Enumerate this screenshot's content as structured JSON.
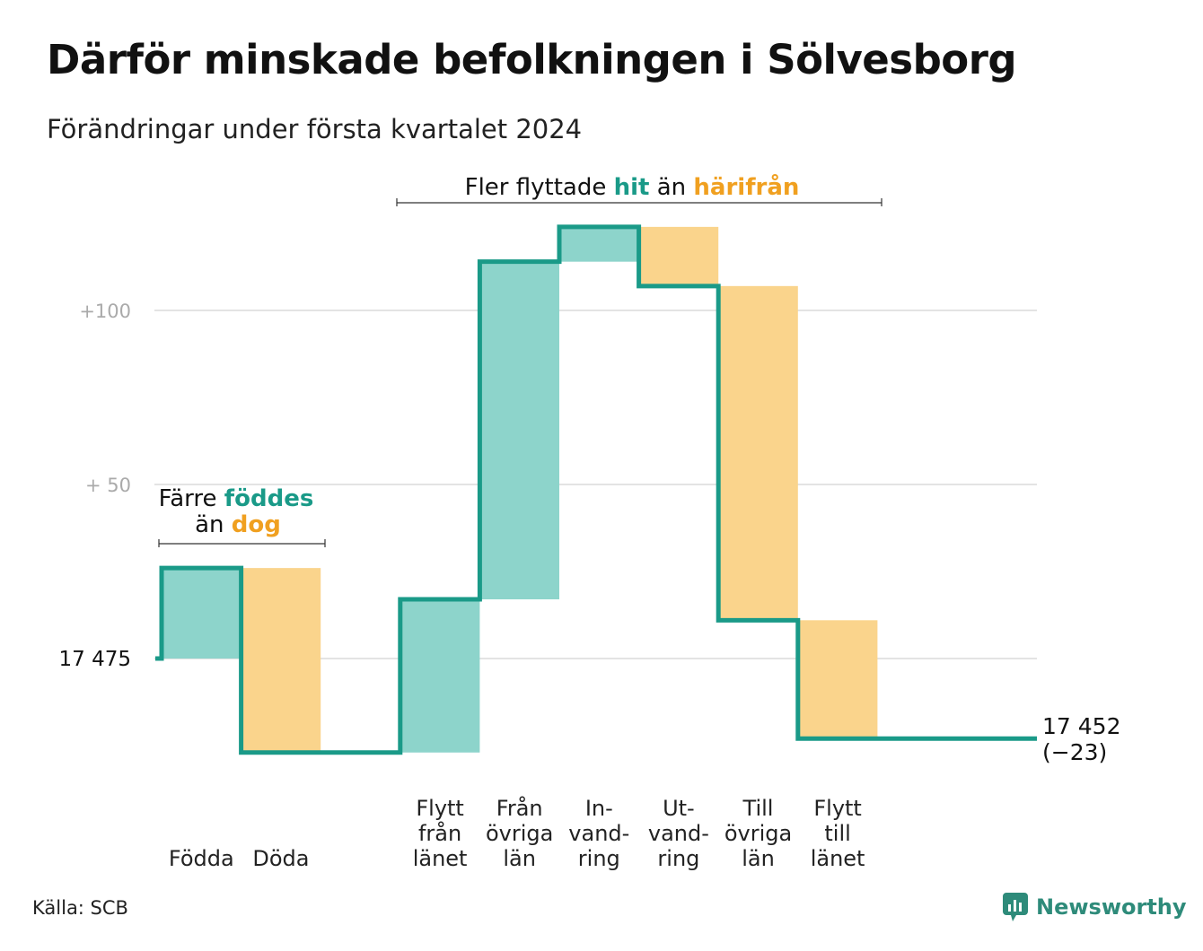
{
  "title": "Därför minskade befolkningen i Sölvesborg",
  "subtitle": "Förändringar under första kvartalet 2024",
  "source": "Källa: SCB",
  "brand": "Newsworthy",
  "colors": {
    "increase_fill": "#8dd4cb",
    "decrease_fill": "#fad48c",
    "line": "#1a9a88",
    "highlight_in": "#1a9a88",
    "highlight_out": "#f0a020",
    "grid": "#e3e3e3"
  },
  "annotations": {
    "births": {
      "line1_a": "Färre ",
      "line1_b": "föddes",
      "line2_a": "än ",
      "line2_b": "dog"
    },
    "migration": {
      "part1": "Fler flyttade ",
      "part2": "hit",
      "part3": " än ",
      "part4": "härifrån"
    }
  },
  "chart_data": {
    "type": "waterfall",
    "start_value": 17475,
    "end_label": "17 452",
    "end_change_label": "(−23)",
    "yticks": [
      {
        "value": 0,
        "label": "17  475"
      },
      {
        "value": 50,
        "label": "+  50"
      },
      {
        "value": 100,
        "label": "+100"
      }
    ],
    "steps": [
      {
        "label": [
          "Födda"
        ],
        "change": 26
      },
      {
        "label": [
          "Döda"
        ],
        "change": -53
      },
      {
        "label": [],
        "change": 0
      },
      {
        "label": [
          "Flytt",
          "från",
          "länet"
        ],
        "change": 44
      },
      {
        "label": [
          "Från",
          "övriga",
          "län"
        ],
        "change": 97
      },
      {
        "label": [
          "In-",
          "vand-",
          "ring"
        ],
        "change": 10
      },
      {
        "label": [
          "Ut-",
          "vand-",
          "ring"
        ],
        "change": -17
      },
      {
        "label": [
          "Till",
          "övriga",
          "län"
        ],
        "change": -96
      },
      {
        "label": [
          "Flytt",
          "till",
          "länet"
        ],
        "change": -34
      },
      {
        "label": [],
        "change": 0
      }
    ],
    "total_change": -23,
    "grid": true
  }
}
